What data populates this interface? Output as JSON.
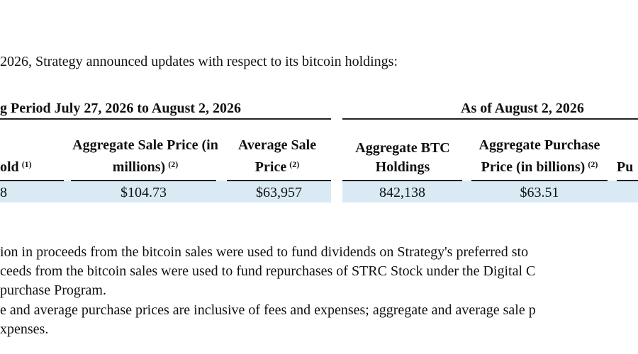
{
  "intro": "2026, Strategy announced updates with respect to its bitcoin holdings:",
  "table": {
    "groups": [
      "g Period July 27, 2026 to August 2, 2026",
      "As of August 2, 2026"
    ],
    "columns": [
      {
        "text": "old",
        "note": "(1)"
      },
      {
        "text": "Aggregate Sale Price (in millions)",
        "note": "(2)"
      },
      {
        "text": "Average Sale Price",
        "note": "(2)"
      },
      {
        "text": "Aggregate BTC Holdings"
      },
      {
        "text": "Aggregate Purchase Price (in billions)",
        "note": "(2)"
      },
      {
        "text": "Pu"
      }
    ],
    "rows": [
      [
        "8",
        "$104.73",
        "$63,957",
        "842,138",
        "$63.51"
      ]
    ]
  },
  "footnotes": [
    "ion in proceeds from the bitcoin sales were used to fund dividends on Strategy's preferred sto",
    "ceeds from the bitcoin sales were used to fund repurchases of STRC Stock under the Digital C",
    "purchase Program.",
    "e and average purchase prices are inclusive of fees and expenses; aggregate and average sale p",
    "xpenses."
  ]
}
